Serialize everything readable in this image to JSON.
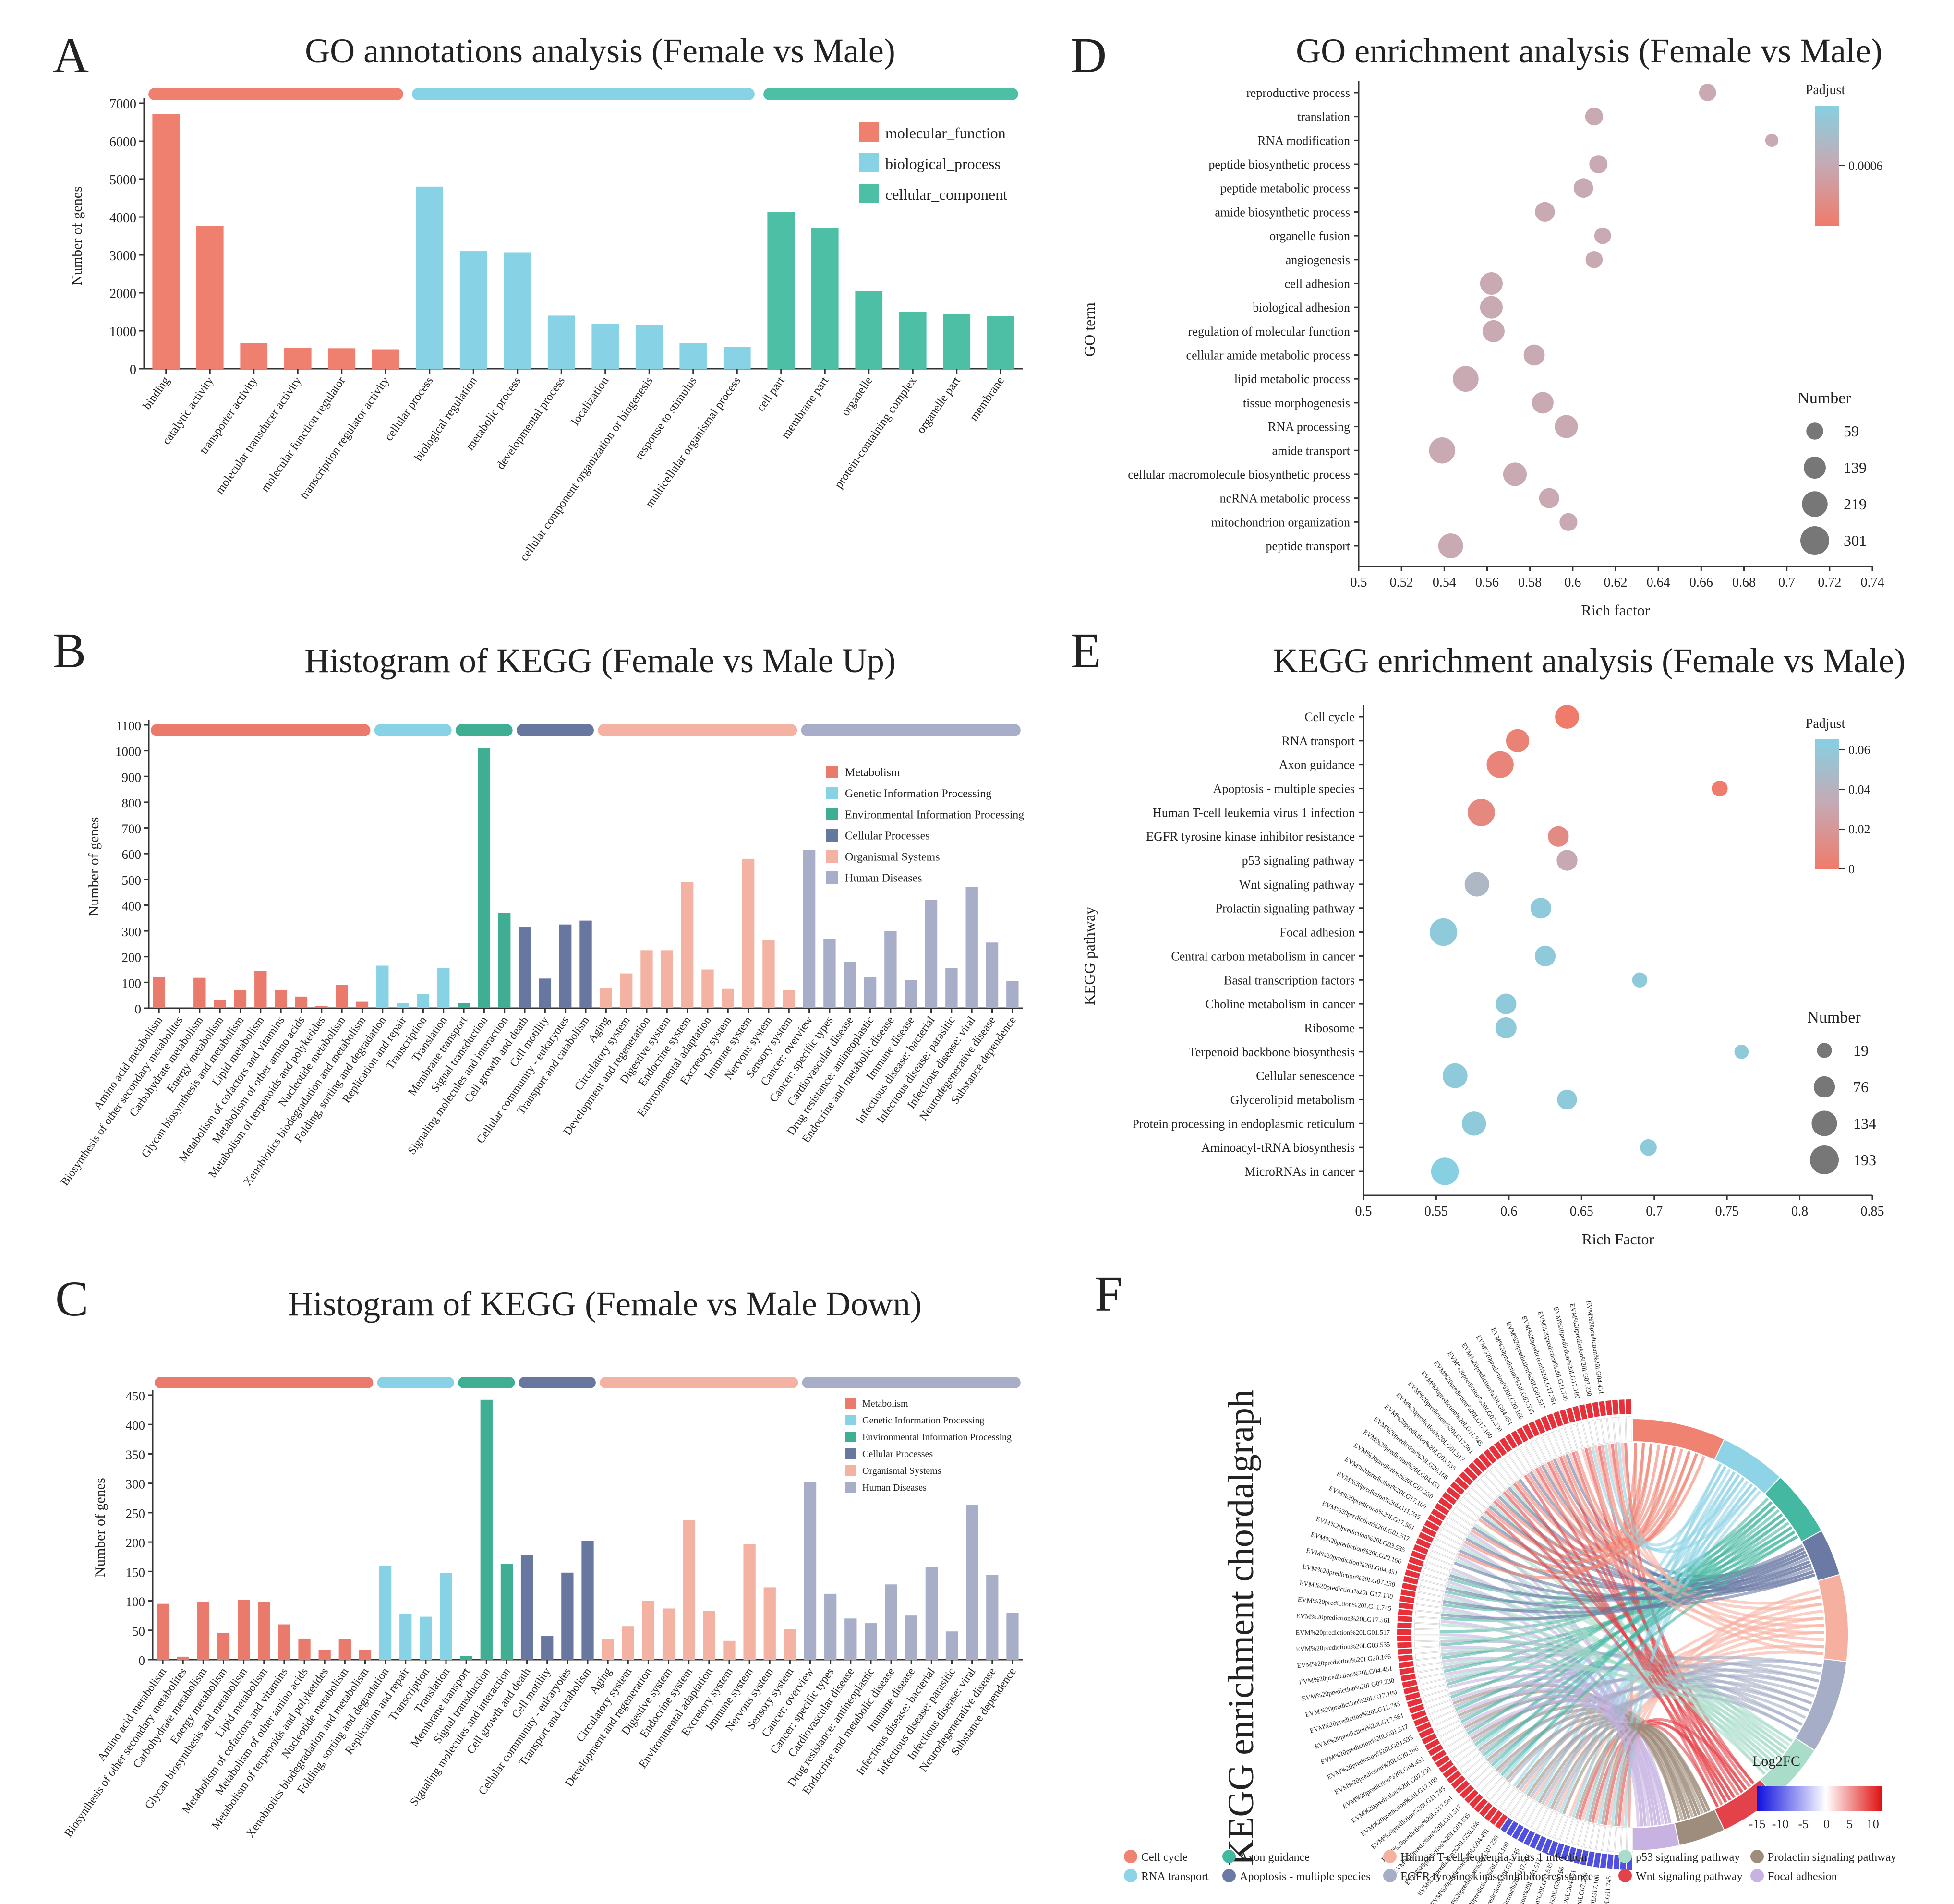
{
  "chart_data": [
    {
      "id": "A",
      "panel_letter": "A",
      "type": "bar",
      "title": "GO annotations analysis (Female vs Male)",
      "ylabel": "Number of genes",
      "xlabel": "",
      "ylim": [
        0,
        7000
      ],
      "yticks": [
        0,
        1000,
        2000,
        3000,
        4000,
        5000,
        6000,
        7000
      ],
      "groups": [
        {
          "name": "molecular_function",
          "color": "#ef8070",
          "categories": [
            "binding",
            "catalytic activity",
            "transporter activity",
            "molecular transducer activity",
            "molecular function regulator",
            "transcription regulator activity"
          ],
          "values": [
            6720,
            3760,
            680,
            550,
            540,
            500
          ]
        },
        {
          "name": "biological_process",
          "color": "#87d2e4",
          "categories": [
            "cellular process",
            "biological regulation",
            "metabolic process",
            "developmental process",
            "localization",
            "cellular component organization or biogenesis",
            "response to stimulus",
            "multicellular organismal process"
          ],
          "values": [
            4800,
            3100,
            3070,
            1400,
            1180,
            1160,
            680,
            580
          ]
        },
        {
          "name": "cellular_component",
          "color": "#4cbfa5",
          "categories": [
            "cell part",
            "membrane part",
            "organelle",
            "protein-containing complex",
            "organelle part",
            "membrane"
          ],
          "values": [
            4130,
            3720,
            2050,
            1500,
            1440,
            1380
          ]
        }
      ]
    },
    {
      "id": "B",
      "panel_letter": "B",
      "type": "bar",
      "title": "Histogram of KEGG (Female vs Male Up)",
      "ylabel": "Number of genes",
      "xlabel": "",
      "ylim": [
        0,
        1100
      ],
      "yticks": [
        0,
        100,
        200,
        300,
        400,
        500,
        600,
        700,
        800,
        900,
        1000,
        1100
      ],
      "groups": [
        {
          "name": "Metabolism",
          "color": "#ea7a6c",
          "categories": [
            "Amino acid metabolism",
            "Biosynthesis of other secondary metabolites",
            "Carbohydrate metabolism",
            "Energy metabolism",
            "Glycan biosynthesis and metabolism",
            "Lipid metabolism",
            "Metabolism of cofactors and vitamins",
            "Metabolism of other amino acids",
            "Metabolism of terpenoids and polyketides",
            "Nucleotide metabolism",
            "Xenobiotics biodegradation and metabolism"
          ],
          "values": [
            120,
            5,
            118,
            32,
            70,
            145,
            70,
            45,
            8,
            90,
            25
          ]
        },
        {
          "name": "Genetic Information Processing",
          "color": "#87d2e4",
          "categories": [
            "Folding, sorting and degradation",
            "Replication and repair",
            "Transcription",
            "Translation"
          ],
          "values": [
            165,
            20,
            55,
            155
          ]
        },
        {
          "name": "Environmental Information Processing",
          "color": "#3fae92",
          "categories": [
            "Membrane transport",
            "Signal transduction",
            "Signaling molecules and interaction"
          ],
          "values": [
            20,
            1010,
            370
          ]
        },
        {
          "name": "Cellular Processes",
          "color": "#6877a0",
          "categories": [
            "Cell growth and death",
            "Cell motility",
            "Cellular community - eukaryotes",
            "Transport and catabolism"
          ],
          "values": [
            315,
            115,
            325,
            340
          ]
        },
        {
          "name": "Organismal Systems",
          "color": "#f4b2a2",
          "categories": [
            "Aging",
            "Circulatory system",
            "Development and regeneration",
            "Digestive system",
            "Endocrine system",
            "Environmental adaptation",
            "Excretory system",
            "Immune system",
            "Nervous system",
            "Sensory system"
          ],
          "values": [
            80,
            135,
            225,
            225,
            490,
            150,
            75,
            580,
            265,
            70
          ]
        },
        {
          "name": "Human Diseases",
          "color": "#a8aec8",
          "categories": [
            "Cancer: overview",
            "Cancer: specific types",
            "Cardiovascular disease",
            "Drug resistance: antineoplastic",
            "Endocrine and metabolic disease",
            "Immune disease",
            "Infectious disease: bacterial",
            "Infectious disease: parasitic",
            "Infectious disease: viral",
            "Neurodegenerative disease",
            "Substance dependence"
          ],
          "values": [
            615,
            270,
            180,
            120,
            300,
            110,
            420,
            155,
            470,
            255,
            105
          ]
        }
      ]
    },
    {
      "id": "C",
      "panel_letter": "C",
      "type": "bar",
      "title": "Histogram of KEGG (Female vs Male Down)",
      "ylabel": "Number of genes",
      "xlabel": "",
      "ylim": [
        0,
        450
      ],
      "yticks": [
        0,
        50,
        100,
        150,
        200,
        250,
        300,
        350,
        400,
        450
      ],
      "groups": [
        {
          "name": "Metabolism",
          "color": "#ea7a6c",
          "categories": [
            "Amino acid metabolism",
            "Biosynthesis of other secondary metabolites",
            "Carbohydrate metabolism",
            "Energy metabolism",
            "Glycan biosynthesis and metabolism",
            "Lipid metabolism",
            "Metabolism of cofactors and vitamins",
            "Metabolism of other amino acids",
            "Metabolism of terpenoids and polyketides",
            "Nucleotide metabolism",
            "Xenobiotics biodegradation and metabolism"
          ],
          "values": [
            95,
            5,
            98,
            45,
            102,
            98,
            60,
            36,
            17,
            35,
            17
          ]
        },
        {
          "name": "Genetic Information Processing",
          "color": "#87d2e4",
          "categories": [
            "Folding, sorting and degradation",
            "Replication and repair",
            "Transcription",
            "Translation"
          ],
          "values": [
            160,
            78,
            73,
            147
          ]
        },
        {
          "name": "Environmental Information Processing",
          "color": "#3fae92",
          "categories": [
            "Membrane transport",
            "Signal transduction",
            "Signaling molecules and interaction"
          ],
          "values": [
            6,
            442,
            163
          ]
        },
        {
          "name": "Cellular Processes",
          "color": "#6877a0",
          "categories": [
            "Cell growth and death",
            "Cell motility",
            "Cellular community - eukaryotes",
            "Transport and catabolism"
          ],
          "values": [
            178,
            40,
            148,
            202
          ]
        },
        {
          "name": "Organismal Systems",
          "color": "#f4b2a2",
          "categories": [
            "Aging",
            "Circulatory system",
            "Development and regeneration",
            "Digestive system",
            "Endocrine system",
            "Environmental adaptation",
            "Excretory system",
            "Immune system",
            "Nervous system",
            "Sensory system"
          ],
          "values": [
            35,
            57,
            100,
            87,
            237,
            83,
            32,
            196,
            123,
            52
          ]
        },
        {
          "name": "Human Diseases",
          "color": "#a8aec8",
          "categories": [
            "Cancer: overview",
            "Cancer: specific types",
            "Cardiovascular disease",
            "Drug resistance: antineoplastic",
            "Endocrine and metabolic disease",
            "Immune disease",
            "Infectious disease: bacterial",
            "Infectious disease: parasitic",
            "Infectious disease: viral",
            "Neurodegenerative disease",
            "Substance dependence"
          ],
          "values": [
            303,
            112,
            70,
            62,
            128,
            75,
            158,
            48,
            263,
            144,
            80
          ]
        }
      ]
    },
    {
      "id": "D",
      "panel_letter": "D",
      "type": "scatter",
      "title": "GO enrichment analysis (Female vs Male)",
      "xlabel": "Rich factor",
      "ylabel": "GO term",
      "xlim": [
        0.5,
        0.74
      ],
      "xticks": [
        "0.5",
        "0.52",
        "0.54",
        "0.56",
        "0.58",
        "0.6",
        "0.62",
        "0.64",
        "0.66",
        "0.68",
        "0.7",
        "0.72",
        "0.74"
      ],
      "color_legend": {
        "title": "Padjust",
        "tick_labels": [
          "0.0006"
        ],
        "low_color": "#f07b6b",
        "mid_color": "#c6a9b3",
        "high_color": "#86d0e2"
      },
      "size_legend": {
        "title": "Number",
        "values": [
          59,
          139,
          219,
          301
        ]
      },
      "terms": [
        "reproductive process",
        "translation",
        "RNA modification",
        "peptide biosynthetic process",
        "peptide metabolic process",
        "amide biosynthetic process",
        "organelle fusion",
        "angiogenesis",
        "cell adhesion",
        "biological adhesion",
        "regulation of molecular function",
        "cellular amide metabolic process",
        "lipid metabolic process",
        "tissue morphogenesis",
        "RNA processing",
        "amide transport",
        "cellular macromolecule biosynthetic process",
        "ncRNA metabolic process",
        "mitochondrion organization",
        "peptide transport"
      ],
      "rich_factor": [
        0.663,
        0.61,
        0.693,
        0.612,
        0.605,
        0.587,
        0.614,
        0.61,
        0.562,
        0.562,
        0.563,
        0.582,
        0.55,
        0.586,
        0.597,
        0.539,
        0.573,
        0.589,
        0.598,
        0.543
      ],
      "number": [
        60,
        70,
        20,
        75,
        95,
        100,
        55,
        60,
        150,
        150,
        140,
        120,
        220,
        130,
        160,
        230,
        170,
        105,
        70,
        200
      ],
      "point_color": "#c9a9b2"
    },
    {
      "id": "E",
      "panel_letter": "E",
      "type": "scatter",
      "title": "KEGG enrichment analysis (Female vs Male)",
      "xlabel": "Rich Factor",
      "ylabel": "KEGG pathway",
      "xlim": [
        0.5,
        0.85
      ],
      "xticks": [
        "0.5",
        "0.55",
        "0.6",
        "0.65",
        "0.7",
        "0.75",
        "0.8",
        "0.85"
      ],
      "color_legend": {
        "title": "Padjust",
        "tick_labels": [
          "0.06",
          "0.04",
          "0.02",
          "0"
        ],
        "range": [
          0,
          0.07
        ],
        "low_color": "#f07b6b",
        "mid_color": "#c6a9b3",
        "high_color": "#86d0e2"
      },
      "size_legend": {
        "title": "Number",
        "values": [
          19,
          76,
          134,
          193
        ]
      },
      "pathways": [
        "Cell cycle",
        "RNA transport",
        "Axon guidance",
        "Apoptosis - multiple species",
        "Human T-cell leukemia virus 1 infection",
        "EGFR tyrosine kinase inhibitor resistance",
        "p53 signaling pathway",
        "Wnt signaling pathway",
        "Prolactin signaling pathway",
        "Focal adhesion",
        "Central carbon metabolism in cancer",
        "Basal transcription factors",
        "Choline metabolism in cancer",
        "Ribosome",
        "Terpenoid backbone biosynthesis",
        "Cellular senescence",
        "Glycerolipid metabolism",
        "Protein processing in endoplasmic reticulum",
        "Aminoacyl-tRNA biosynthesis",
        "MicroRNAs in cancer"
      ],
      "rich_factor": [
        0.64,
        0.606,
        0.594,
        0.745,
        0.581,
        0.634,
        0.64,
        0.578,
        0.622,
        0.555,
        0.625,
        0.69,
        0.598,
        0.598,
        0.76,
        0.563,
        0.64,
        0.576,
        0.696,
        0.556
      ],
      "number": [
        110,
        100,
        160,
        25,
        165,
        70,
        70,
        120,
        70,
        170,
        70,
        20,
        70,
        75,
        15,
        125,
        60,
        115,
        30,
        170
      ],
      "padjust": [
        0.0,
        0.005,
        0.007,
        0.001,
        0.01,
        0.012,
        0.035,
        0.048,
        0.065,
        0.065,
        0.065,
        0.065,
        0.065,
        0.065,
        0.065,
        0.065,
        0.065,
        0.065,
        0.065,
        0.07
      ]
    },
    {
      "id": "F",
      "panel_letter": "F",
      "type": "chord",
      "title": "KEGG enrichment chordalgraph",
      "gene_label_text": "EVM%20prediction%20LG",
      "legend_title": "Log2FC",
      "log2fc_ticks": [
        "-15",
        "-10",
        "-5",
        "0",
        "5",
        "10"
      ],
      "log2fc_range": [
        -15,
        12
      ],
      "visible_gene_labels": [
        "EVM%20prediction%20LG11.745",
        "EVM%20prediction%20LG17.100",
        "EVM%20prediction%20LG07.230",
        "EVM%20prediction%20LG04.451",
        "EVM%20prediction%20LG20.166",
        "EVM%20prediction%20LG03.535",
        "EVM%20prediction%20LG01.517",
        "EVM%20prediction%20LG17.561"
      ],
      "pathways": [
        {
          "name": "Cell cycle",
          "color": "#f08272",
          "share": 0.14
        },
        {
          "name": "RNA transport",
          "color": "#8fd3e6",
          "share": 0.1
        },
        {
          "name": "Axon guidance",
          "color": "#44b8a0",
          "share": 0.1
        },
        {
          "name": "Apoptosis - multiple species",
          "color": "#6a7aa5",
          "share": 0.07
        },
        {
          "name": "Human T-cell leukemia virus 1 infection",
          "color": "#f6b0a0",
          "share": 0.13
        },
        {
          "name": "EGFR tyrosine kinase inhibitor resistance",
          "color": "#a5adc7",
          "share": 0.14
        },
        {
          "name": "p53 signaling pathway",
          "color": "#a9dcc9",
          "share": 0.09
        },
        {
          "name": "Wnt signaling pathway",
          "color": "#e4424a",
          "share": 0.09
        },
        {
          "name": "Prolactin signaling pathway",
          "color": "#9e8c7c",
          "share": 0.07
        },
        {
          "name": "Focal adhesion",
          "color": "#c7b2e2",
          "share": 0.07
        }
      ]
    }
  ]
}
